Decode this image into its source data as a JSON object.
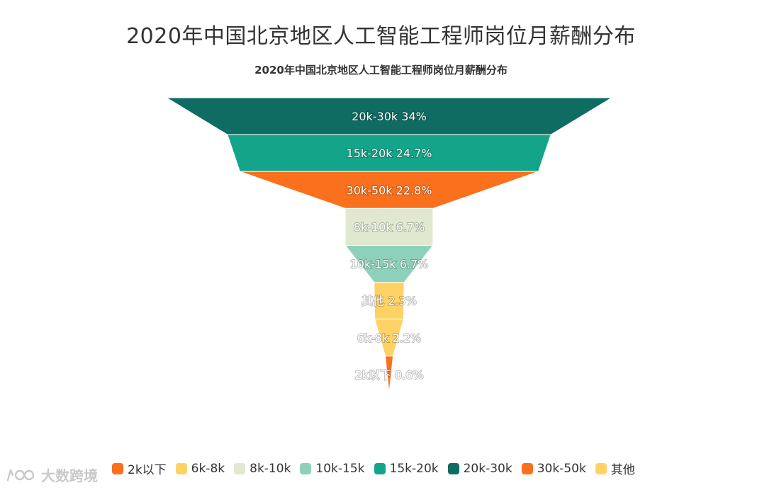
{
  "title": "2020年中国北京地区人工智能工程师岗位月薪酬分布",
  "subtitle": "2020年中国北京地区人工智能工程师岗位月薪酬分布",
  "watermark": "大数跨境",
  "chart_data": {
    "type": "funnel",
    "title": "2020年中国北京地区人工智能工程师岗位月薪酬分布",
    "sort": "descending",
    "unit": "%",
    "series": [
      {
        "name": "20k-30k",
        "value": 34,
        "color": "#0f6c63"
      },
      {
        "name": "15k-20k",
        "value": 24.7,
        "color": "#14a489"
      },
      {
        "name": "30k-50k",
        "value": 22.8,
        "color": "#fb701d"
      },
      {
        "name": "8k-10k",
        "value": 6.7,
        "color": "#e0e8d0"
      },
      {
        "name": "10k-15k",
        "value": 6.7,
        "color": "#8ed1bb"
      },
      {
        "name": "其他",
        "value": 2.3,
        "color": "#fed265"
      },
      {
        "name": "6k-8k",
        "value": 2.2,
        "color": "#fed265"
      },
      {
        "name": "2k以下",
        "value": 0.6,
        "color": "#fb701d"
      }
    ],
    "legend": {
      "position": "bottom",
      "items": [
        {
          "label": "2k以下",
          "color": "#fb701d"
        },
        {
          "label": "6k-8k",
          "color": "#fed265"
        },
        {
          "label": "8k-10k",
          "color": "#e0e8d0"
        },
        {
          "label": "10k-15k",
          "color": "#8ed1bb"
        },
        {
          "label": "15k-20k",
          "color": "#14a489"
        },
        {
          "label": "20k-30k",
          "color": "#0f6c63"
        },
        {
          "label": "30k-50k",
          "color": "#fb701d"
        },
        {
          "label": "其他",
          "color": "#fed265"
        }
      ]
    }
  }
}
